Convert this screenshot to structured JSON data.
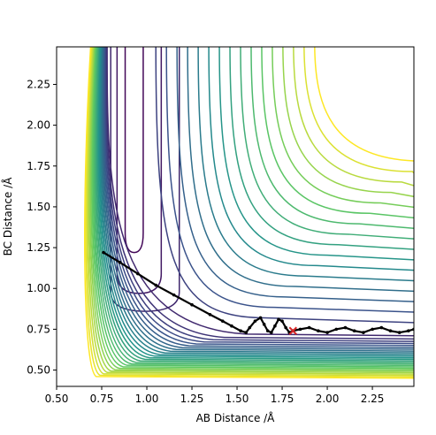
{
  "chart_data": {
    "type": "contour",
    "title": "",
    "xlabel": "AB Distance /Å",
    "ylabel": "BC Distance /Å",
    "xlim": [
      0.5,
      2.48
    ],
    "ylim": [
      0.4,
      2.48
    ],
    "xticks": [
      "0.50",
      "0.75",
      "1.00",
      "1.25",
      "1.50",
      "1.75",
      "2.00",
      "2.25"
    ],
    "yticks": [
      "0.50",
      "0.75",
      "1.00",
      "1.25",
      "1.50",
      "1.75",
      "2.00",
      "2.25"
    ],
    "grid": false,
    "colormap": [
      "#440154",
      "#3b528b",
      "#21918c",
      "#5ec962",
      "#fde725"
    ],
    "valley_contours": [
      {
        "x_inner": 0.88,
        "x_outer": 0.98,
        "y_bottom": 1.22
      },
      {
        "x_inner": 0.835,
        "x_outer": 1.08,
        "y_bottom": 0.97
      },
      {
        "x_inner": 0.8,
        "x_outer": 1.18,
        "y_bottom": 0.86
      }
    ],
    "trajectory_start": {
      "x": 0.76,
      "y": 1.22
    },
    "trajectory_end_marker": {
      "x": 1.81,
      "y": 0.74,
      "color": "#d62728"
    },
    "trajectory": [
      [
        0.76,
        1.22
      ],
      [
        0.85,
        1.16
      ],
      [
        0.95,
        1.09
      ],
      [
        1.05,
        1.02
      ],
      [
        1.15,
        0.96
      ],
      [
        1.25,
        0.9
      ],
      [
        1.35,
        0.84
      ],
      [
        1.42,
        0.8
      ],
      [
        1.47,
        0.77
      ],
      [
        1.52,
        0.74
      ],
      [
        1.55,
        0.73
      ],
      [
        1.57,
        0.76
      ],
      [
        1.6,
        0.8
      ],
      [
        1.63,
        0.82
      ],
      [
        1.65,
        0.78
      ],
      [
        1.67,
        0.74
      ],
      [
        1.69,
        0.73
      ],
      [
        1.71,
        0.77
      ],
      [
        1.73,
        0.81
      ],
      [
        1.75,
        0.8
      ],
      [
        1.77,
        0.76
      ],
      [
        1.79,
        0.73
      ],
      [
        1.81,
        0.74
      ],
      [
        1.85,
        0.75
      ],
      [
        1.9,
        0.76
      ],
      [
        1.95,
        0.74
      ],
      [
        2.0,
        0.73
      ],
      [
        2.05,
        0.75
      ],
      [
        2.1,
        0.76
      ],
      [
        2.15,
        0.74
      ],
      [
        2.2,
        0.73
      ],
      [
        2.25,
        0.75
      ],
      [
        2.3,
        0.76
      ],
      [
        2.35,
        0.74
      ],
      [
        2.4,
        0.73
      ],
      [
        2.45,
        0.74
      ],
      [
        2.48,
        0.75
      ]
    ]
  }
}
